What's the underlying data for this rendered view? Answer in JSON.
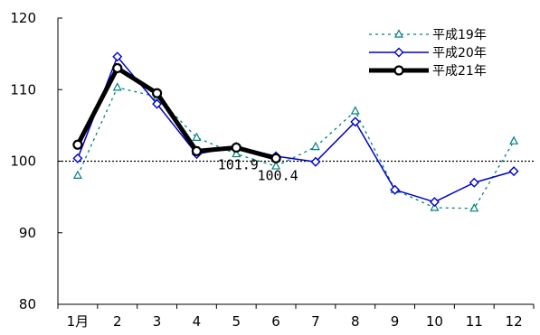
{
  "chart_data": {
    "type": "line",
    "categories": [
      "1月",
      "2",
      "3",
      "4",
      "5",
      "6",
      "7",
      "8",
      "9",
      "10",
      "11",
      "12"
    ],
    "ylim": [
      80,
      120
    ],
    "yticks": [
      80,
      90,
      100,
      110,
      120
    ],
    "reference_line": 100,
    "grid": false,
    "legend_position": "top-right",
    "series": [
      {
        "name": "平成19年",
        "values": [
          98.0,
          110.3,
          109.0,
          103.3,
          101.0,
          99.3,
          102.0,
          107.0,
          96.0,
          93.5,
          93.4,
          102.8
        ],
        "color": "#008080",
        "style": "dotted",
        "marker": "triangle"
      },
      {
        "name": "平成20年",
        "values": [
          100.4,
          114.6,
          108.0,
          101.0,
          102.0,
          100.7,
          99.9,
          105.5,
          96.0,
          94.3,
          97.0,
          98.6
        ],
        "color": "#0000cc",
        "style": "solid",
        "marker": "diamond"
      },
      {
        "name": "平成21年",
        "values": [
          102.3,
          113.0,
          109.5,
          101.4,
          101.9,
          100.4,
          null,
          null,
          null,
          null,
          null,
          null
        ],
        "color": "#000000",
        "style": "thick",
        "marker": "circle"
      }
    ],
    "data_labels": [
      {
        "series": 2,
        "index": 4,
        "text": "101.9"
      },
      {
        "series": 2,
        "index": 5,
        "text": "100.4"
      }
    ]
  }
}
